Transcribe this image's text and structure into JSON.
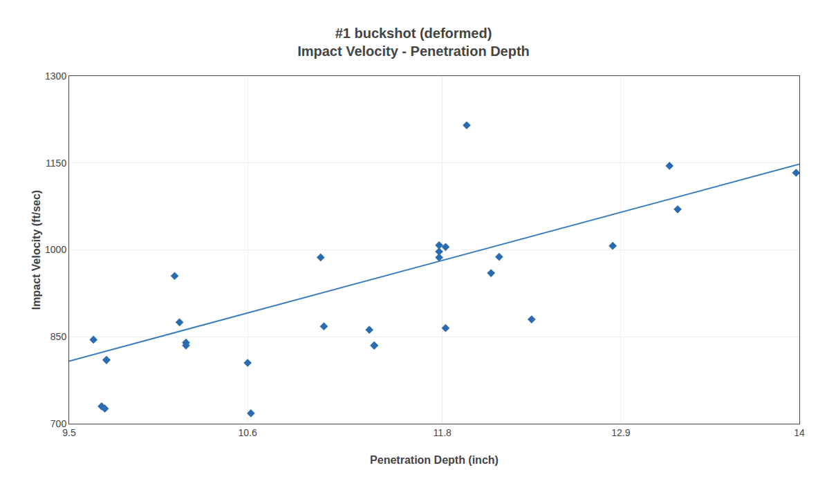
{
  "chart_data": {
    "type": "scatter",
    "title": "#1 buckshot (deformed)",
    "subtitle": "Impact Velocity - Penetration Depth",
    "xlabel": "Penetration Depth (inch)",
    "ylabel": "Impact Velocity (ft/sec)",
    "xlim": [
      9.5,
      14.0
    ],
    "ylim": [
      700,
      1300
    ],
    "xticks": [
      9.5,
      10.6,
      11.8,
      12.9,
      14.0
    ],
    "yticks": [
      700,
      850,
      1000,
      1150,
      1300
    ],
    "grid": true,
    "series": [
      {
        "type": "scatter",
        "color": "#2B6CB0",
        "marker": "diamond",
        "x": [
          9.65,
          9.7,
          9.72,
          9.73,
          9.73,
          10.15,
          10.18,
          10.22,
          10.22,
          10.6,
          10.62,
          11.05,
          11.07,
          11.35,
          11.38,
          11.38,
          11.78,
          11.78,
          11.78,
          11.82,
          11.82,
          11.95,
          12.1,
          12.15,
          12.35,
          12.85,
          13.2,
          13.25,
          13.98
        ],
        "values": [
          845,
          730,
          726,
          810,
          810,
          955,
          875,
          840,
          835,
          805,
          718,
          987,
          868,
          862,
          835,
          835,
          1008,
          997,
          987,
          865,
          1005,
          1215,
          960,
          988,
          880,
          1007,
          1145,
          1070,
          1133
        ]
      },
      {
        "type": "line",
        "color": "#3B7EC0",
        "line_style": "solid",
        "x": [
          9.5,
          14.0
        ],
        "values": [
          808,
          1148
        ]
      }
    ]
  }
}
